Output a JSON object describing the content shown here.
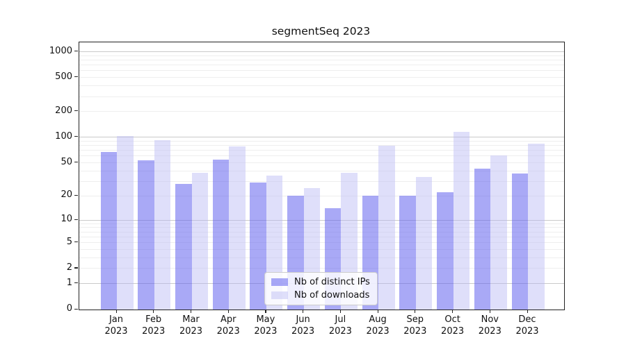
{
  "title": "segmentSeq 2023",
  "colors": {
    "distinct_ips_bar": "rgba(98,98,238,0.55)",
    "downloads_bar": "rgba(183,183,243,0.45)",
    "major_grid": "#c9c9c9",
    "minor_grid": "#eeeeee",
    "axis": "#222222",
    "text": "#111111"
  },
  "chart_data": {
    "type": "bar",
    "title": "segmentSeq 2023",
    "y_scale": "log1p",
    "grid": true,
    "legend_position": "lower center",
    "categories": [
      "Jan 2023",
      "Feb 2023",
      "Mar 2023",
      "Apr 2023",
      "May 2023",
      "Jun 2023",
      "Jul 2023",
      "Aug 2023",
      "Sep 2023",
      "Oct 2023",
      "Nov 2023",
      "Dec 2023"
    ],
    "series": [
      {
        "name": "Nb of distinct IPs",
        "values": [
          67,
          54,
          28,
          55,
          29,
          20,
          14,
          20,
          20,
          22,
          43,
          37
        ]
      },
      {
        "name": "Nb of downloads",
        "values": [
          104,
          93,
          38,
          78,
          35,
          25,
          38,
          80,
          34,
          115,
          61,
          85
        ]
      }
    ],
    "y_ticks": [
      0,
      1,
      2,
      5,
      10,
      20,
      50,
      100,
      200,
      500,
      1000
    ],
    "minor_grid_values": [
      2,
      3,
      4,
      5,
      6,
      7,
      8,
      9,
      20,
      30,
      40,
      50,
      60,
      70,
      80,
      90,
      200,
      300,
      400,
      500,
      600,
      700,
      800,
      900
    ],
    "major_grid_values": [
      1,
      10,
      100,
      1000
    ],
    "ylim": [
      0,
      1290
    ],
    "xlabel": "",
    "ylabel": ""
  }
}
